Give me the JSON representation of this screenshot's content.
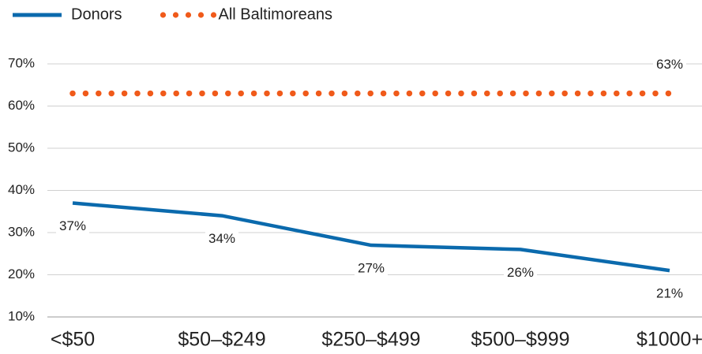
{
  "chart_data": {
    "type": "line",
    "categories": [
      "<$50",
      "$50–$249",
      "$250–$499",
      "$500–$999",
      "$1000+"
    ],
    "series": [
      {
        "name": "Donors",
        "color": "#0b6aad",
        "style": "solid",
        "values": [
          37,
          34,
          27,
          26,
          21
        ],
        "value_labels": [
          "37%",
          "34%",
          "27%",
          "26%",
          "21%"
        ]
      },
      {
        "name": "All Baltimoreans",
        "color": "#f05a1a",
        "style": "dotted",
        "values": [
          63,
          63,
          63,
          63,
          63
        ],
        "value_labels": [
          null,
          null,
          null,
          null,
          "63%"
        ]
      }
    ],
    "ylim": [
      10,
      70
    ],
    "yticks": [
      {
        "value": 10,
        "label": "10%"
      },
      {
        "value": 20,
        "label": "20%"
      },
      {
        "value": 30,
        "label": "30%"
      },
      {
        "value": 40,
        "label": "40%"
      },
      {
        "value": 50,
        "label": "50%"
      },
      {
        "value": 60,
        "label": "60%"
      },
      {
        "value": 70,
        "label": "70%"
      }
    ],
    "grid": true,
    "legend": "top"
  }
}
